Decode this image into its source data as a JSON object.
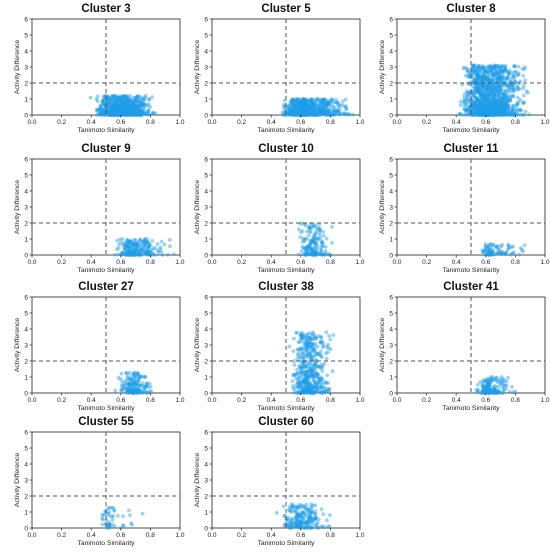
{
  "figure": {
    "xlabel": "Tanimoto Similarity",
    "ylabel": "Activity Difference",
    "xticks": [
      "0.0",
      "0.2",
      "0.4",
      "0.6",
      "0.8",
      "1.0"
    ],
    "yticks": [
      "0",
      "1",
      "2",
      "3",
      "4",
      "5",
      "6"
    ],
    "point_color": "#1f9ee8",
    "threshold_color": "#555555"
  },
  "chart_data": [
    {
      "type": "scatter",
      "title": "Cluster 3",
      "xlabel": "Tanimoto Similarity",
      "ylabel": "Activity Difference",
      "xlim": [
        0,
        1
      ],
      "ylim": [
        0,
        6
      ],
      "threshold_x": 0.5,
      "threshold_y": 2,
      "grid": false,
      "point_cloud": {
        "x_range": [
          0.38,
          0.86
        ],
        "y_range": [
          0,
          1.2
        ],
        "peak_x": 0.6,
        "approx_count": 700
      }
    },
    {
      "type": "scatter",
      "title": "Cluster 5",
      "xlabel": "Tanimoto Similarity",
      "ylabel": "Activity Difference",
      "xlim": [
        0,
        1
      ],
      "ylim": [
        0,
        6
      ],
      "threshold_x": 0.5,
      "threshold_y": 2,
      "grid": false,
      "point_cloud": {
        "x_range": [
          0.45,
          1.0
        ],
        "y_range": [
          0,
          1.0
        ],
        "peak_x": 0.62,
        "approx_count": 650
      }
    },
    {
      "type": "scatter",
      "title": "Cluster 8",
      "xlabel": "Tanimoto Similarity",
      "ylabel": "Activity Difference",
      "xlim": [
        0,
        1
      ],
      "ylim": [
        0,
        6
      ],
      "threshold_x": 0.5,
      "threshold_y": 2,
      "grid": false,
      "point_cloud": {
        "x_range": [
          0.38,
          0.92
        ],
        "y_range": [
          0,
          3.1
        ],
        "peak_x": 0.62,
        "approx_count": 1200
      }
    },
    {
      "type": "scatter",
      "title": "Cluster 9",
      "xlabel": "Tanimoto Similarity",
      "ylabel": "Activity Difference",
      "xlim": [
        0,
        1
      ],
      "ylim": [
        0,
        6
      ],
      "threshold_x": 0.5,
      "threshold_y": 2,
      "grid": false,
      "point_cloud": {
        "x_range": [
          0.55,
          1.0
        ],
        "y_range": [
          0,
          1.0
        ],
        "peak_x": 0.68,
        "approx_count": 220
      }
    },
    {
      "type": "scatter",
      "title": "Cluster 10",
      "xlabel": "Tanimoto Similarity",
      "ylabel": "Activity Difference",
      "xlim": [
        0,
        1
      ],
      "ylim": [
        0,
        6
      ],
      "threshold_x": 0.5,
      "threshold_y": 2,
      "grid": false,
      "point_cloud": {
        "x_range": [
          0.55,
          0.85
        ],
        "y_range": [
          0,
          2.0
        ],
        "peak_x": 0.68,
        "approx_count": 160
      }
    },
    {
      "type": "scatter",
      "title": "Cluster 11",
      "xlabel": "Tanimoto Similarity",
      "ylabel": "Activity Difference",
      "xlim": [
        0,
        1
      ],
      "ylim": [
        0,
        6
      ],
      "threshold_x": 0.5,
      "threshold_y": 2,
      "grid": false,
      "point_cloud": {
        "x_range": [
          0.55,
          0.92
        ],
        "y_range": [
          0,
          0.7
        ],
        "peak_x": 0.62,
        "approx_count": 90
      }
    },
    {
      "type": "scatter",
      "title": "Cluster 27",
      "xlabel": "Tanimoto Similarity",
      "ylabel": "Activity Difference",
      "xlim": [
        0,
        1
      ],
      "ylim": [
        0,
        6
      ],
      "threshold_x": 0.5,
      "threshold_y": 2,
      "grid": false,
      "point_cloud": {
        "x_range": [
          0.55,
          0.85
        ],
        "y_range": [
          0,
          1.3
        ],
        "peak_x": 0.68,
        "approx_count": 160
      }
    },
    {
      "type": "scatter",
      "title": "Cluster 38",
      "xlabel": "Tanimoto Similarity",
      "ylabel": "Activity Difference",
      "xlim": [
        0,
        1
      ],
      "ylim": [
        0,
        6
      ],
      "threshold_x": 0.5,
      "threshold_y": 2,
      "grid": false,
      "point_cloud": {
        "x_range": [
          0.5,
          0.85
        ],
        "y_range": [
          0,
          3.8
        ],
        "peak_x": 0.65,
        "approx_count": 450
      }
    },
    {
      "type": "scatter",
      "title": "Cluster 41",
      "xlabel": "Tanimoto Similarity",
      "ylabel": "Activity Difference",
      "xlim": [
        0,
        1
      ],
      "ylim": [
        0,
        6
      ],
      "threshold_x": 0.5,
      "threshold_y": 2,
      "grid": false,
      "point_cloud": {
        "x_range": [
          0.52,
          0.85
        ],
        "y_range": [
          0,
          1.0
        ],
        "peak_x": 0.62,
        "approx_count": 160
      }
    },
    {
      "type": "scatter",
      "title": "Cluster 55",
      "xlabel": "Tanimoto Similarity",
      "ylabel": "Activity Difference",
      "xlim": [
        0,
        1
      ],
      "ylim": [
        0,
        6
      ],
      "threshold_x": 0.5,
      "threshold_y": 2,
      "grid": false,
      "point_cloud": {
        "x_range": [
          0.45,
          0.8
        ],
        "y_range": [
          0,
          1.3
        ],
        "peak_x": 0.5,
        "approx_count": 45
      }
    },
    {
      "type": "scatter",
      "title": "Cluster 60",
      "xlabel": "Tanimoto Similarity",
      "ylabel": "Activity Difference",
      "xlim": [
        0,
        1
      ],
      "ylim": [
        0,
        6
      ],
      "threshold_x": 0.5,
      "threshold_y": 2,
      "grid": false,
      "point_cloud": {
        "x_range": [
          0.42,
          0.85
        ],
        "y_range": [
          0,
          1.5
        ],
        "peak_x": 0.6,
        "approx_count": 200
      }
    }
  ]
}
